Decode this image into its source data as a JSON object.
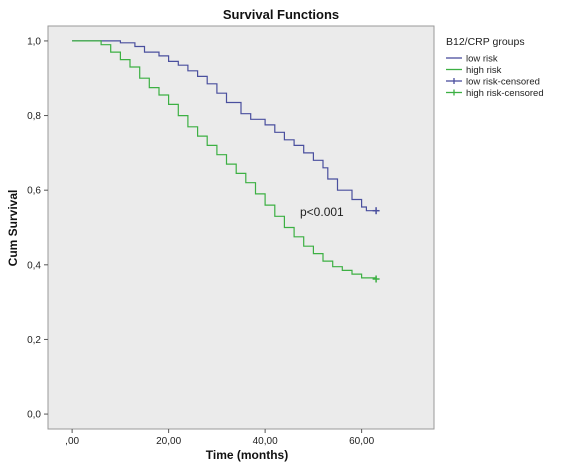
{
  "chart_data": {
    "type": "line",
    "title": "Survival Functions",
    "xlabel": "Time (months)",
    "ylabel": "Cum Survival",
    "xlim": [
      -5,
      75
    ],
    "ylim": [
      -0.04,
      1.04
    ],
    "x_ticks": [
      0,
      20,
      40,
      60
    ],
    "x_tick_labels": [
      ",00",
      "20,00",
      "40,00",
      "60,00"
    ],
    "y_ticks": [
      0,
      0.2,
      0.4,
      0.6,
      0.8,
      1.0
    ],
    "y_tick_labels": [
      "0,0",
      "0,2",
      "0,4",
      "0,6",
      "0,8",
      "1,0"
    ],
    "grid": false,
    "legend": {
      "title": "B12/CRP groups",
      "placement": "top-right outside",
      "entries": [
        "low risk",
        "high risk",
        "low risk-censored",
        "high risk-censored"
      ]
    },
    "annotation": "p<0.001",
    "series": [
      {
        "name": "low risk",
        "color": "#4a4f9e",
        "step": true,
        "x": [
          0,
          10,
          13,
          15,
          18,
          20,
          22,
          24,
          26,
          28,
          30,
          32,
          35,
          37,
          40,
          42,
          44,
          46,
          48,
          50,
          52,
          53,
          55,
          58,
          60,
          61,
          63
        ],
        "y": [
          1.0,
          0.995,
          0.985,
          0.97,
          0.96,
          0.945,
          0.935,
          0.92,
          0.905,
          0.885,
          0.86,
          0.835,
          0.805,
          0.79,
          0.775,
          0.755,
          0.735,
          0.72,
          0.7,
          0.68,
          0.66,
          0.63,
          0.6,
          0.575,
          0.555,
          0.545,
          0.545
        ]
      },
      {
        "name": "high risk",
        "color": "#3cb043",
        "step": true,
        "x": [
          0,
          6,
          8,
          10,
          12,
          14,
          16,
          18,
          20,
          22,
          24,
          26,
          28,
          30,
          32,
          34,
          36,
          38,
          40,
          42,
          44,
          46,
          48,
          50,
          52,
          54,
          56,
          58,
          60,
          63
        ],
        "y": [
          1.0,
          0.99,
          0.97,
          0.95,
          0.93,
          0.9,
          0.875,
          0.855,
          0.83,
          0.8,
          0.77,
          0.745,
          0.72,
          0.695,
          0.67,
          0.645,
          0.62,
          0.59,
          0.56,
          0.53,
          0.5,
          0.475,
          0.45,
          0.43,
          0.41,
          0.395,
          0.385,
          0.375,
          0.365,
          0.362
        ]
      }
    ],
    "censored": [
      {
        "name": "low risk-censored",
        "color": "#4a4f9e",
        "x": [
          63
        ],
        "y": [
          0.545
        ]
      },
      {
        "name": "high risk-censored",
        "color": "#3cb043",
        "x": [
          63
        ],
        "y": [
          0.362
        ]
      }
    ]
  }
}
